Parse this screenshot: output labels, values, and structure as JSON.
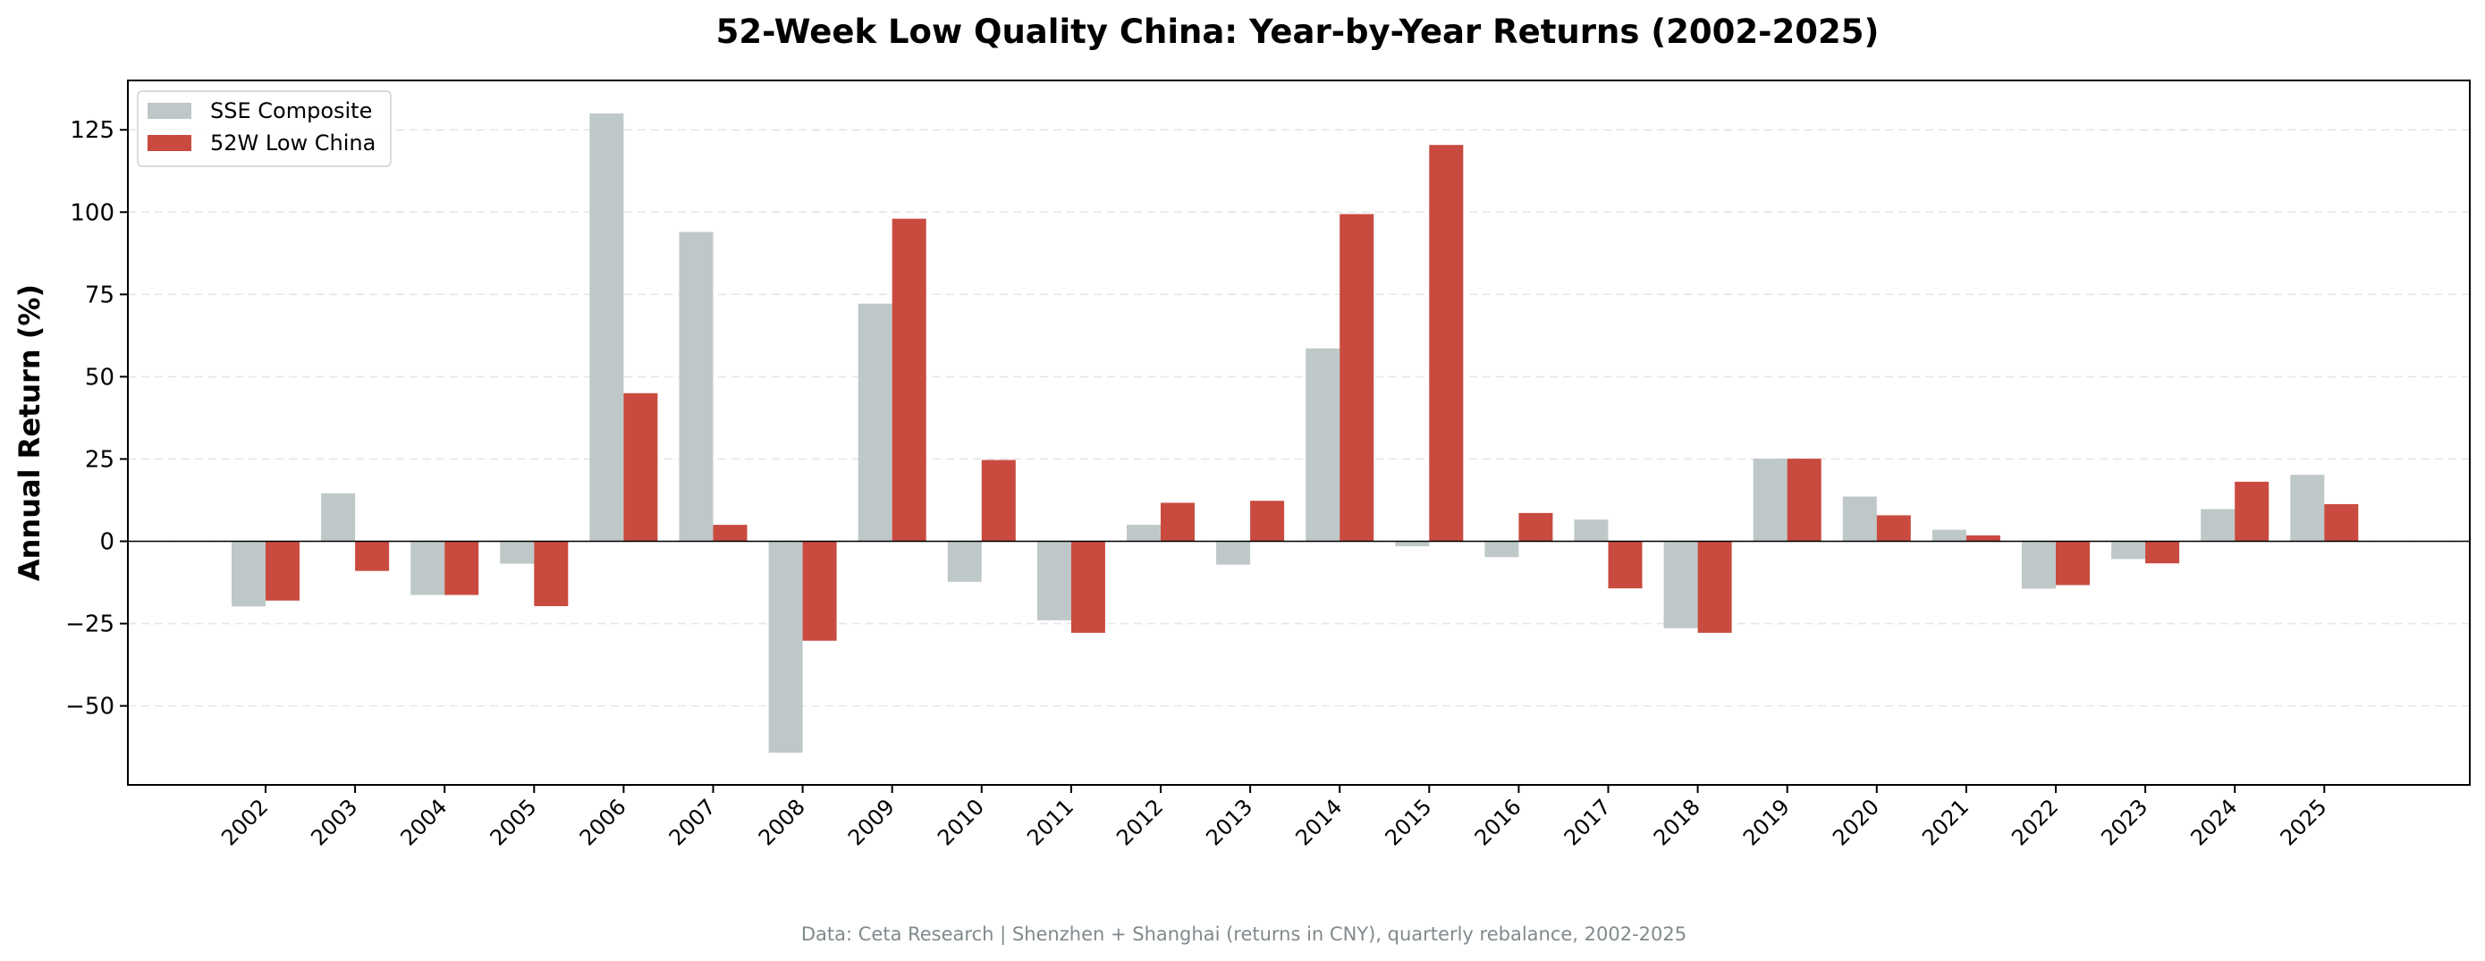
{
  "chart_data": {
    "type": "bar",
    "title": "52-Week Low Quality China: Year-by-Year Returns (2002-2025)",
    "xlabel": "",
    "ylabel": "Annual Return (%)",
    "ylim": [
      -74,
      140
    ],
    "yticks": [
      -50,
      -25,
      0,
      25,
      50,
      75,
      100,
      125
    ],
    "ytick_labels": [
      "−50",
      "−25",
      "0",
      "25",
      "50",
      "75",
      "100",
      "125"
    ],
    "grid": "horizontal dashed",
    "legend_position": "top-left",
    "categories": [
      "2002",
      "2003",
      "2004",
      "2005",
      "2006",
      "2007",
      "2008",
      "2009",
      "2010",
      "2011",
      "2012",
      "2013",
      "2014",
      "2015",
      "2016",
      "2017",
      "2018",
      "2019",
      "2020",
      "2021",
      "2022",
      "2023",
      "2024",
      "2025"
    ],
    "series": [
      {
        "name": "SSE Composite",
        "color": "#bfc8c8",
        "values": [
          -19.8,
          14.6,
          -16.3,
          -6.8,
          130.0,
          94.0,
          -64.2,
          72.2,
          -12.3,
          -24.0,
          5.0,
          -7.1,
          58.6,
          -1.5,
          -4.8,
          6.6,
          -26.4,
          25.1,
          13.6,
          3.5,
          -14.4,
          -5.4,
          9.8,
          20.2
        ]
      },
      {
        "name": "52W Low China",
        "color": "#c94a3f",
        "values": [
          -18.0,
          -9.0,
          -16.3,
          -19.7,
          45.0,
          5.0,
          -30.2,
          98.0,
          24.7,
          -27.8,
          11.7,
          12.3,
          99.4,
          120.4,
          8.6,
          -14.3,
          -27.8,
          25.1,
          7.9,
          1.8,
          -13.3,
          -6.7,
          18.1,
          11.3
        ]
      }
    ]
  },
  "footer": "Data: Ceta Research | Shenzhen + Shanghai (returns in CNY), quarterly rebalance, 2002-2025"
}
